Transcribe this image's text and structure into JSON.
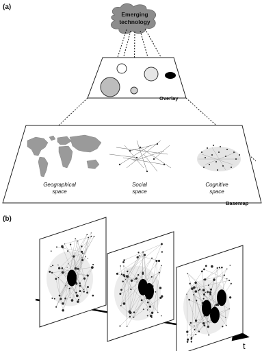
{
  "panel_a": {
    "label": "(a)",
    "cloud_line1": "Emerging",
    "cloud_line2": "technology",
    "overlay_label": "Overlay",
    "basemap_label": "Basemap",
    "spaces": [
      {
        "line1": "Geographical",
        "line2": "space"
      },
      {
        "line1": "Social",
        "line2": "space"
      },
      {
        "line1": "Cognitive",
        "line2": "space"
      }
    ]
  },
  "panel_b": {
    "label": "(b)",
    "time_axis_label": "t",
    "frames": [
      {
        "hotspots": 1
      },
      {
        "hotspots": 2
      },
      {
        "hotspots": 3
      }
    ]
  }
}
